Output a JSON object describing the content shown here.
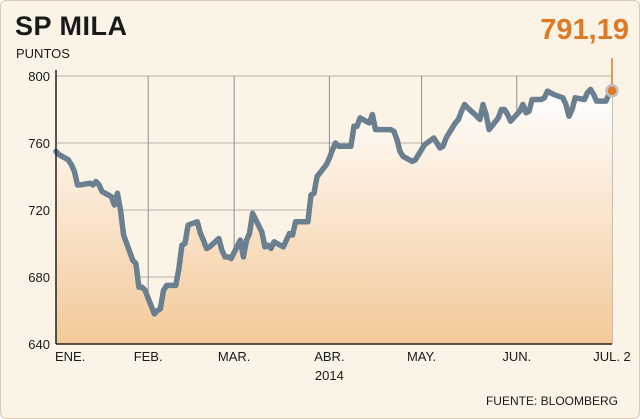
{
  "header": {
    "title": "SP MILA",
    "subtitle": "PUNTOS",
    "latest_value": "791,19",
    "source": "FUENTE: BLOOMBERG"
  },
  "colors": {
    "line": "#6a8090",
    "accent": "#e07a22",
    "background": "#fbf3e6",
    "grid": "#8e8e8e"
  },
  "chart_data": {
    "type": "area",
    "title": "SP MILA",
    "ylabel": "PUNTOS",
    "xlabel": "",
    "ylim": [
      640,
      800
    ],
    "yticks": [
      640,
      680,
      720,
      760,
      800
    ],
    "ytick_labels": [
      "640",
      "680",
      "720",
      "760",
      "800"
    ],
    "x_range": [
      "2014-01-02",
      "2014-07-02"
    ],
    "x_ticks": [
      {
        "date": "2014-01-02",
        "label": "ENE."
      },
      {
        "date": "2014-02-01",
        "label": "FEB."
      },
      {
        "date": "2014-03-01",
        "label": "MAR."
      },
      {
        "date": "2014-04-01",
        "label": "ABR."
      },
      {
        "date": "2014-05-01",
        "label": "MAY."
      },
      {
        "date": "2014-06-01",
        "label": "JUN."
      },
      {
        "date": "2014-07-02",
        "label": "JUL. 2"
      }
    ],
    "year_label": "2014",
    "grid": true,
    "last_point": {
      "date": "2014-07-02",
      "value": 791.19,
      "label": "791,19"
    },
    "series": [
      {
        "x": [
          "2014-01-02",
          "2014-01-03",
          "2014-01-06",
          "2014-01-07",
          "2014-01-08",
          "2014-01-09",
          "2014-01-10",
          "2014-01-13",
          "2014-01-14",
          "2014-01-15",
          "2014-01-16",
          "2014-01-17",
          "2014-01-20",
          "2014-01-21",
          "2014-01-22",
          "2014-01-23",
          "2014-01-24",
          "2014-01-27",
          "2014-01-28",
          "2014-01-29",
          "2014-01-30",
          "2014-01-31",
          "2014-02-03",
          "2014-02-04",
          "2014-02-05",
          "2014-02-06",
          "2014-02-07",
          "2014-02-10",
          "2014-02-11",
          "2014-02-12",
          "2014-02-13",
          "2014-02-14",
          "2014-02-17",
          "2014-02-18",
          "2014-02-19",
          "2014-02-20",
          "2014-02-21",
          "2014-02-24",
          "2014-02-25",
          "2014-02-26",
          "2014-02-27",
          "2014-02-28",
          "2014-03-03",
          "2014-03-04",
          "2014-03-05",
          "2014-03-06",
          "2014-03-07",
          "2014-03-10",
          "2014-03-11",
          "2014-03-12",
          "2014-03-13",
          "2014-03-14",
          "2014-03-17",
          "2014-03-18",
          "2014-03-19",
          "2014-03-20",
          "2014-03-21",
          "2014-03-24",
          "2014-03-25",
          "2014-03-26",
          "2014-03-27",
          "2014-03-28",
          "2014-03-31",
          "2014-04-01",
          "2014-04-02",
          "2014-04-03",
          "2014-04-04",
          "2014-04-07",
          "2014-04-08",
          "2014-04-09",
          "2014-04-10",
          "2014-04-11",
          "2014-04-14",
          "2014-04-15",
          "2014-04-16",
          "2014-04-17",
          "2014-04-21",
          "2014-04-22",
          "2014-04-23",
          "2014-04-24",
          "2014-04-25",
          "2014-04-28",
          "2014-04-29",
          "2014-04-30",
          "2014-05-02",
          "2014-05-05",
          "2014-05-06",
          "2014-05-07",
          "2014-05-08",
          "2014-05-09",
          "2014-05-12",
          "2014-05-13",
          "2014-05-14",
          "2014-05-15",
          "2014-05-16",
          "2014-05-19",
          "2014-05-20",
          "2014-05-21",
          "2014-05-22",
          "2014-05-23",
          "2014-05-26",
          "2014-05-27",
          "2014-05-28",
          "2014-05-29",
          "2014-05-30",
          "2014-06-02",
          "2014-06-03",
          "2014-06-04",
          "2014-06-05",
          "2014-06-06",
          "2014-06-09",
          "2014-06-10",
          "2014-06-11",
          "2014-06-12",
          "2014-06-13",
          "2014-06-16",
          "2014-06-17",
          "2014-06-18",
          "2014-06-19",
          "2014-06-20",
          "2014-06-23",
          "2014-06-24",
          "2014-06-25",
          "2014-06-26",
          "2014-06-27",
          "2014-06-30",
          "2014-07-01",
          "2014-07-02"
        ],
        "values": [
          755,
          753,
          750,
          747,
          743,
          735,
          735,
          736,
          735,
          737,
          735,
          731,
          728,
          723,
          730,
          720,
          705,
          690,
          688,
          674,
          674,
          672,
          658,
          660,
          661,
          672,
          675,
          675,
          685,
          699,
          700,
          711,
          713,
          706,
          702,
          697,
          698,
          703,
          696,
          692,
          692,
          691,
          702,
          692,
          702,
          706,
          718,
          707,
          698,
          699,
          697,
          701,
          698,
          702,
          706,
          705,
          713,
          713,
          713,
          729,
          730,
          740,
          747,
          751,
          756,
          760,
          758,
          758,
          758,
          770,
          770,
          775,
          772,
          777,
          768,
          768,
          768,
          767,
          762,
          755,
          752,
          749,
          750,
          753,
          759,
          763,
          760,
          757,
          758,
          763,
          772,
          774,
          779,
          783,
          781,
          776,
          774,
          783,
          777,
          768,
          775,
          780,
          780,
          777,
          773,
          779,
          783,
          778,
          779,
          786,
          786,
          787,
          791,
          790,
          789,
          787,
          783,
          776,
          780,
          787,
          786,
          790,
          792,
          789,
          785,
          785,
          789,
          791.19
        ]
      }
    ]
  }
}
